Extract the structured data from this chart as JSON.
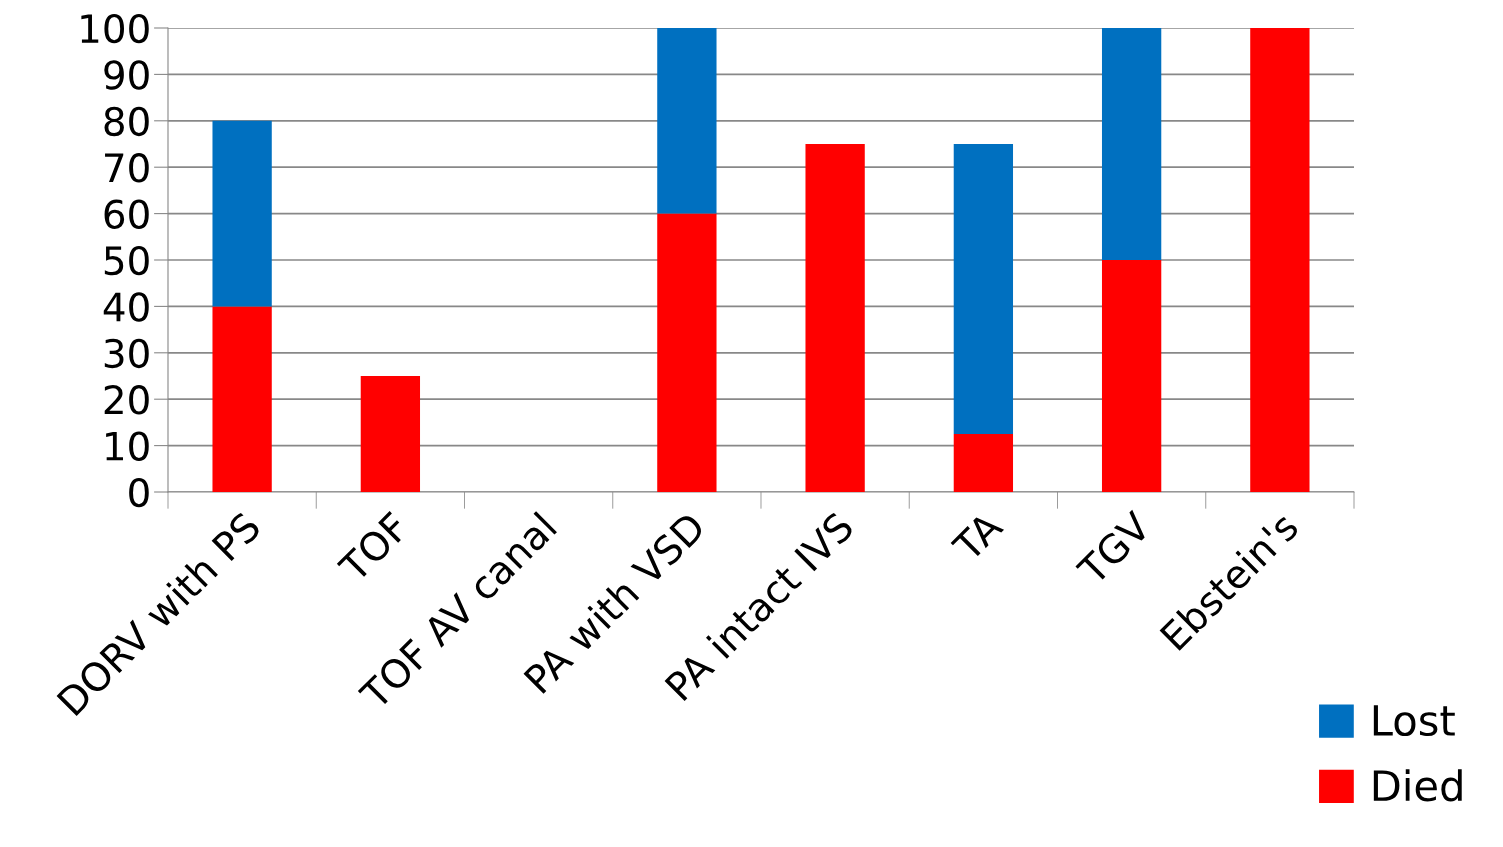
{
  "chart_data": {
    "type": "bar",
    "stacked": true,
    "categories": [
      "DORV with PS",
      "TOF",
      "TOF AV canal",
      "PA with VSD",
      "PA intact IVS",
      "TA",
      "TGV",
      "Ebstein's"
    ],
    "series": [
      {
        "name": "Died",
        "color": "#ff0000",
        "values": [
          40,
          25,
          0,
          60,
          75,
          12.5,
          50,
          100
        ]
      },
      {
        "name": "Lost",
        "color": "#0070c0",
        "values": [
          40,
          0,
          0,
          40,
          0,
          62.5,
          50,
          0
        ]
      }
    ],
    "ylim": [
      0,
      100
    ],
    "yticks": [
      0,
      10,
      20,
      30,
      40,
      50,
      60,
      70,
      80,
      90,
      100
    ],
    "grid": "y",
    "legend": "bottom right"
  }
}
